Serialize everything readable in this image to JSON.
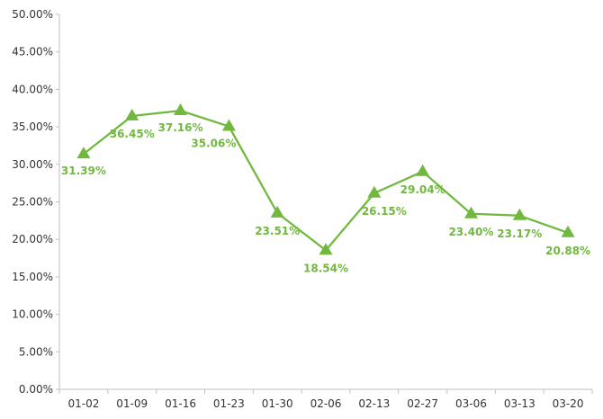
{
  "chart_data": {
    "type": "line",
    "title": "",
    "xlabel": "",
    "ylabel": "",
    "categories": [
      "01-02",
      "01-09",
      "01-16",
      "01-23",
      "01-30",
      "02-06",
      "02-13",
      "02-27",
      "03-06",
      "03-13",
      "03-20"
    ],
    "series": [
      {
        "values": [
          31.39,
          36.45,
          37.16,
          35.06,
          23.51,
          18.54,
          26.15,
          29.04,
          23.4,
          23.17,
          20.88
        ],
        "labels": [
          "31.39%",
          "36.45%",
          "37.16%",
          "35.06%",
          "23.51%",
          "18.54%",
          "26.15%",
          "29.04%",
          "23.40%",
          "23.17%",
          "20.88%"
        ],
        "color": "#70B83E",
        "marker": "triangle"
      }
    ],
    "ylim": [
      0,
      50
    ],
    "yticks": [
      "0.00%",
      "5.00%",
      "10.00%",
      "15.00%",
      "20.00%",
      "25.00%",
      "30.00%",
      "35.00%",
      "40.00%",
      "45.00%",
      "50.00%"
    ],
    "grid": false,
    "legend": "none",
    "axis_color": "#BFBFBF",
    "tick_text_color": "#333333"
  }
}
